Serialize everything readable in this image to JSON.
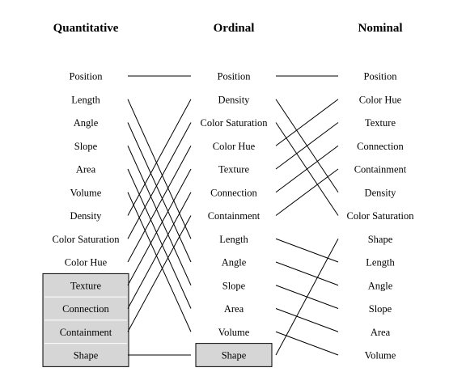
{
  "columns": [
    {
      "id": "quantitative",
      "title": "Quantitative",
      "items": [
        "Position",
        "Length",
        "Angle",
        "Slope",
        "Area",
        "Volume",
        "Density",
        "Color Saturation",
        "Color Hue",
        "Texture",
        "Connection",
        "Containment",
        "Shape"
      ],
      "boxed": [
        "Texture",
        "Connection",
        "Containment",
        "Shape"
      ]
    },
    {
      "id": "ordinal",
      "title": "Ordinal",
      "items": [
        "Position",
        "Density",
        "Color Saturation",
        "Color Hue",
        "Texture",
        "Connection",
        "Containment",
        "Length",
        "Angle",
        "Slope",
        "Area",
        "Volume",
        "Shape"
      ],
      "boxed": [
        "Shape"
      ]
    },
    {
      "id": "nominal",
      "title": "Nominal",
      "items": [
        "Position",
        "Color Hue",
        "Texture",
        "Connection",
        "Containment",
        "Density",
        "Color Saturation",
        "Shape",
        "Length",
        "Angle",
        "Slope",
        "Area",
        "Volume"
      ],
      "boxed": []
    }
  ],
  "colors": {
    "box_fill": "#d6d6d6",
    "line": "#000000",
    "background": "#ffffff"
  }
}
